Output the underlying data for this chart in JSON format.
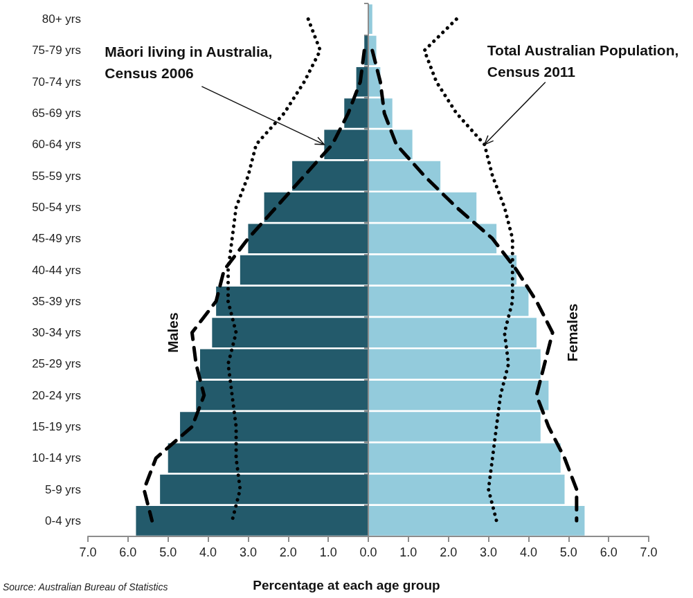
{
  "chart_data": {
    "type": "bar",
    "orientation": "horizontal",
    "stacked": true,
    "categories": [
      "80+ yrs",
      "75-79 yrs",
      "70-74 yrs",
      "65-69 yrs",
      "60-64 yrs",
      "55-59 yrs",
      "50-54 yrs",
      "45-49 yrs",
      "40-44 yrs",
      "35-39 yrs",
      "30-34 yrs",
      "25-29 yrs",
      "20-24 yrs",
      "15-19 yrs",
      "10-14 yrs",
      "5-9 yrs",
      "0-4 yrs"
    ],
    "series": [
      {
        "name": "Males",
        "color": "#235a6b",
        "values": [
          0.0,
          -0.1,
          -0.3,
          -0.6,
          -1.1,
          -1.9,
          -2.6,
          -3.0,
          -3.2,
          -3.8,
          -3.9,
          -4.2,
          -4.3,
          -4.7,
          -5.0,
          -5.2,
          -5.8
        ]
      },
      {
        "name": "Females",
        "color": "#93cbdc",
        "values": [
          0.1,
          0.2,
          0.3,
          0.6,
          1.1,
          1.8,
          2.7,
          3.2,
          3.7,
          4.0,
          4.2,
          4.3,
          4.5,
          4.3,
          4.8,
          4.9,
          5.4
        ]
      },
      {
        "type": "line",
        "line_style": "dashed",
        "marker": "none",
        "color": "#000000",
        "values": [
          null,
          -0.1,
          -0.2,
          -0.5,
          -0.9,
          -1.6,
          -2.3,
          -3.0,
          -3.6,
          -3.8,
          -4.4,
          -4.3,
          -4.1,
          -4.4,
          -5.3,
          -5.6,
          -5.4
        ]
      },
      {
        "type": "line",
        "line_style": "dashed",
        "marker": "none",
        "color": "#000000",
        "values": [
          null,
          0.1,
          0.3,
          0.4,
          0.7,
          1.4,
          2.2,
          3.1,
          3.7,
          4.2,
          4.6,
          4.4,
          4.2,
          4.5,
          4.9,
          5.2,
          5.2
        ]
      },
      {
        "type": "line",
        "line_style": "dotted",
        "marker": "none",
        "color": "#000000",
        "values": [
          -1.5,
          -1.2,
          -1.6,
          -2.1,
          -2.8,
          -3.0,
          -3.3,
          -3.4,
          -3.5,
          -3.5,
          -3.3,
          -3.5,
          -3.4,
          -3.3,
          -3.3,
          -3.2,
          -3.4
        ]
      },
      {
        "type": "line",
        "line_style": "dotted",
        "marker": "none",
        "color": "#000000",
        "values": [
          2.2,
          1.4,
          1.7,
          2.2,
          2.9,
          3.1,
          3.4,
          3.6,
          3.6,
          3.6,
          3.4,
          3.5,
          3.3,
          3.2,
          3.1,
          3.0,
          3.2
        ]
      }
    ],
    "xlim": [
      -7,
      7
    ],
    "xticks": [
      {
        "value": -7,
        "label": "7.0"
      },
      {
        "value": -6,
        "label": "6.0"
      },
      {
        "value": -5,
        "label": "5.0"
      },
      {
        "value": -4,
        "label": "4.0"
      },
      {
        "value": -3,
        "label": "3.0"
      },
      {
        "value": -2,
        "label": "2.0"
      },
      {
        "value": -1,
        "label": "1.0"
      },
      {
        "value": 0,
        "label": "0.0"
      },
      {
        "value": 1,
        "label": "1.0"
      },
      {
        "value": 2,
        "label": "2.0"
      },
      {
        "value": 3,
        "label": "3.0"
      },
      {
        "value": 4,
        "label": "4.0"
      },
      {
        "value": 5,
        "label": "5.0"
      },
      {
        "value": 6,
        "label": "6.0"
      },
      {
        "value": 7,
        "label": "7.0"
      }
    ],
    "xlabel": "Percentage at each age group",
    "annotations": [
      {
        "text": "Māori living in Australia, Census 2006",
        "x": -1.1,
        "y": "60-64 yrs"
      },
      {
        "text": "Total Australian Population, Census 2011",
        "x": 2.9,
        "y": "60-64 yrs"
      },
      "Source: Australian Bureau of Statistics"
    ],
    "ref_lines": [
      {
        "axis": "x",
        "value": 0,
        "color": "#8c8c8c"
      }
    ],
    "grid": false,
    "legend": false
  }
}
